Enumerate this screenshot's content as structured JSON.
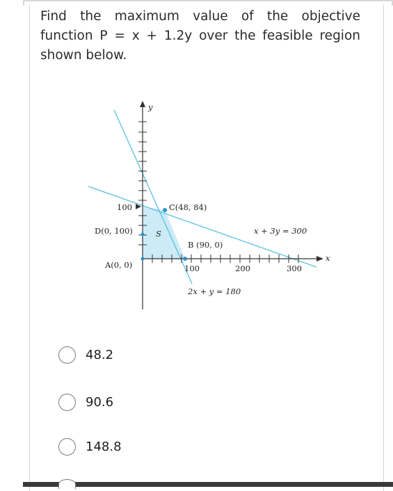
{
  "question": {
    "text": "Find the maximum value of the objective function P = x + 1.2y over the feasible region shown below."
  },
  "graph": {
    "axis_x_label": "x",
    "axis_y_label": "y",
    "y_tick_label": "100",
    "x_tick_labels": [
      "100",
      "200",
      "300"
    ],
    "region_label": "S",
    "points": {
      "A": "A(0, 0)",
      "B": "B (90, 0)",
      "C": "C(48, 84)",
      "D": "D(0, 100)"
    },
    "line_labels": {
      "line1": "x + 3y = 300",
      "line2": "2x + y = 180"
    },
    "colors": {
      "line": "#5bbfe0",
      "region": "#cdebf6",
      "point": "#2a93c7",
      "axis": "#333333"
    }
  },
  "options": [
    {
      "label": "48.2"
    },
    {
      "label": "90.6"
    },
    {
      "label": "148.8"
    }
  ]
}
